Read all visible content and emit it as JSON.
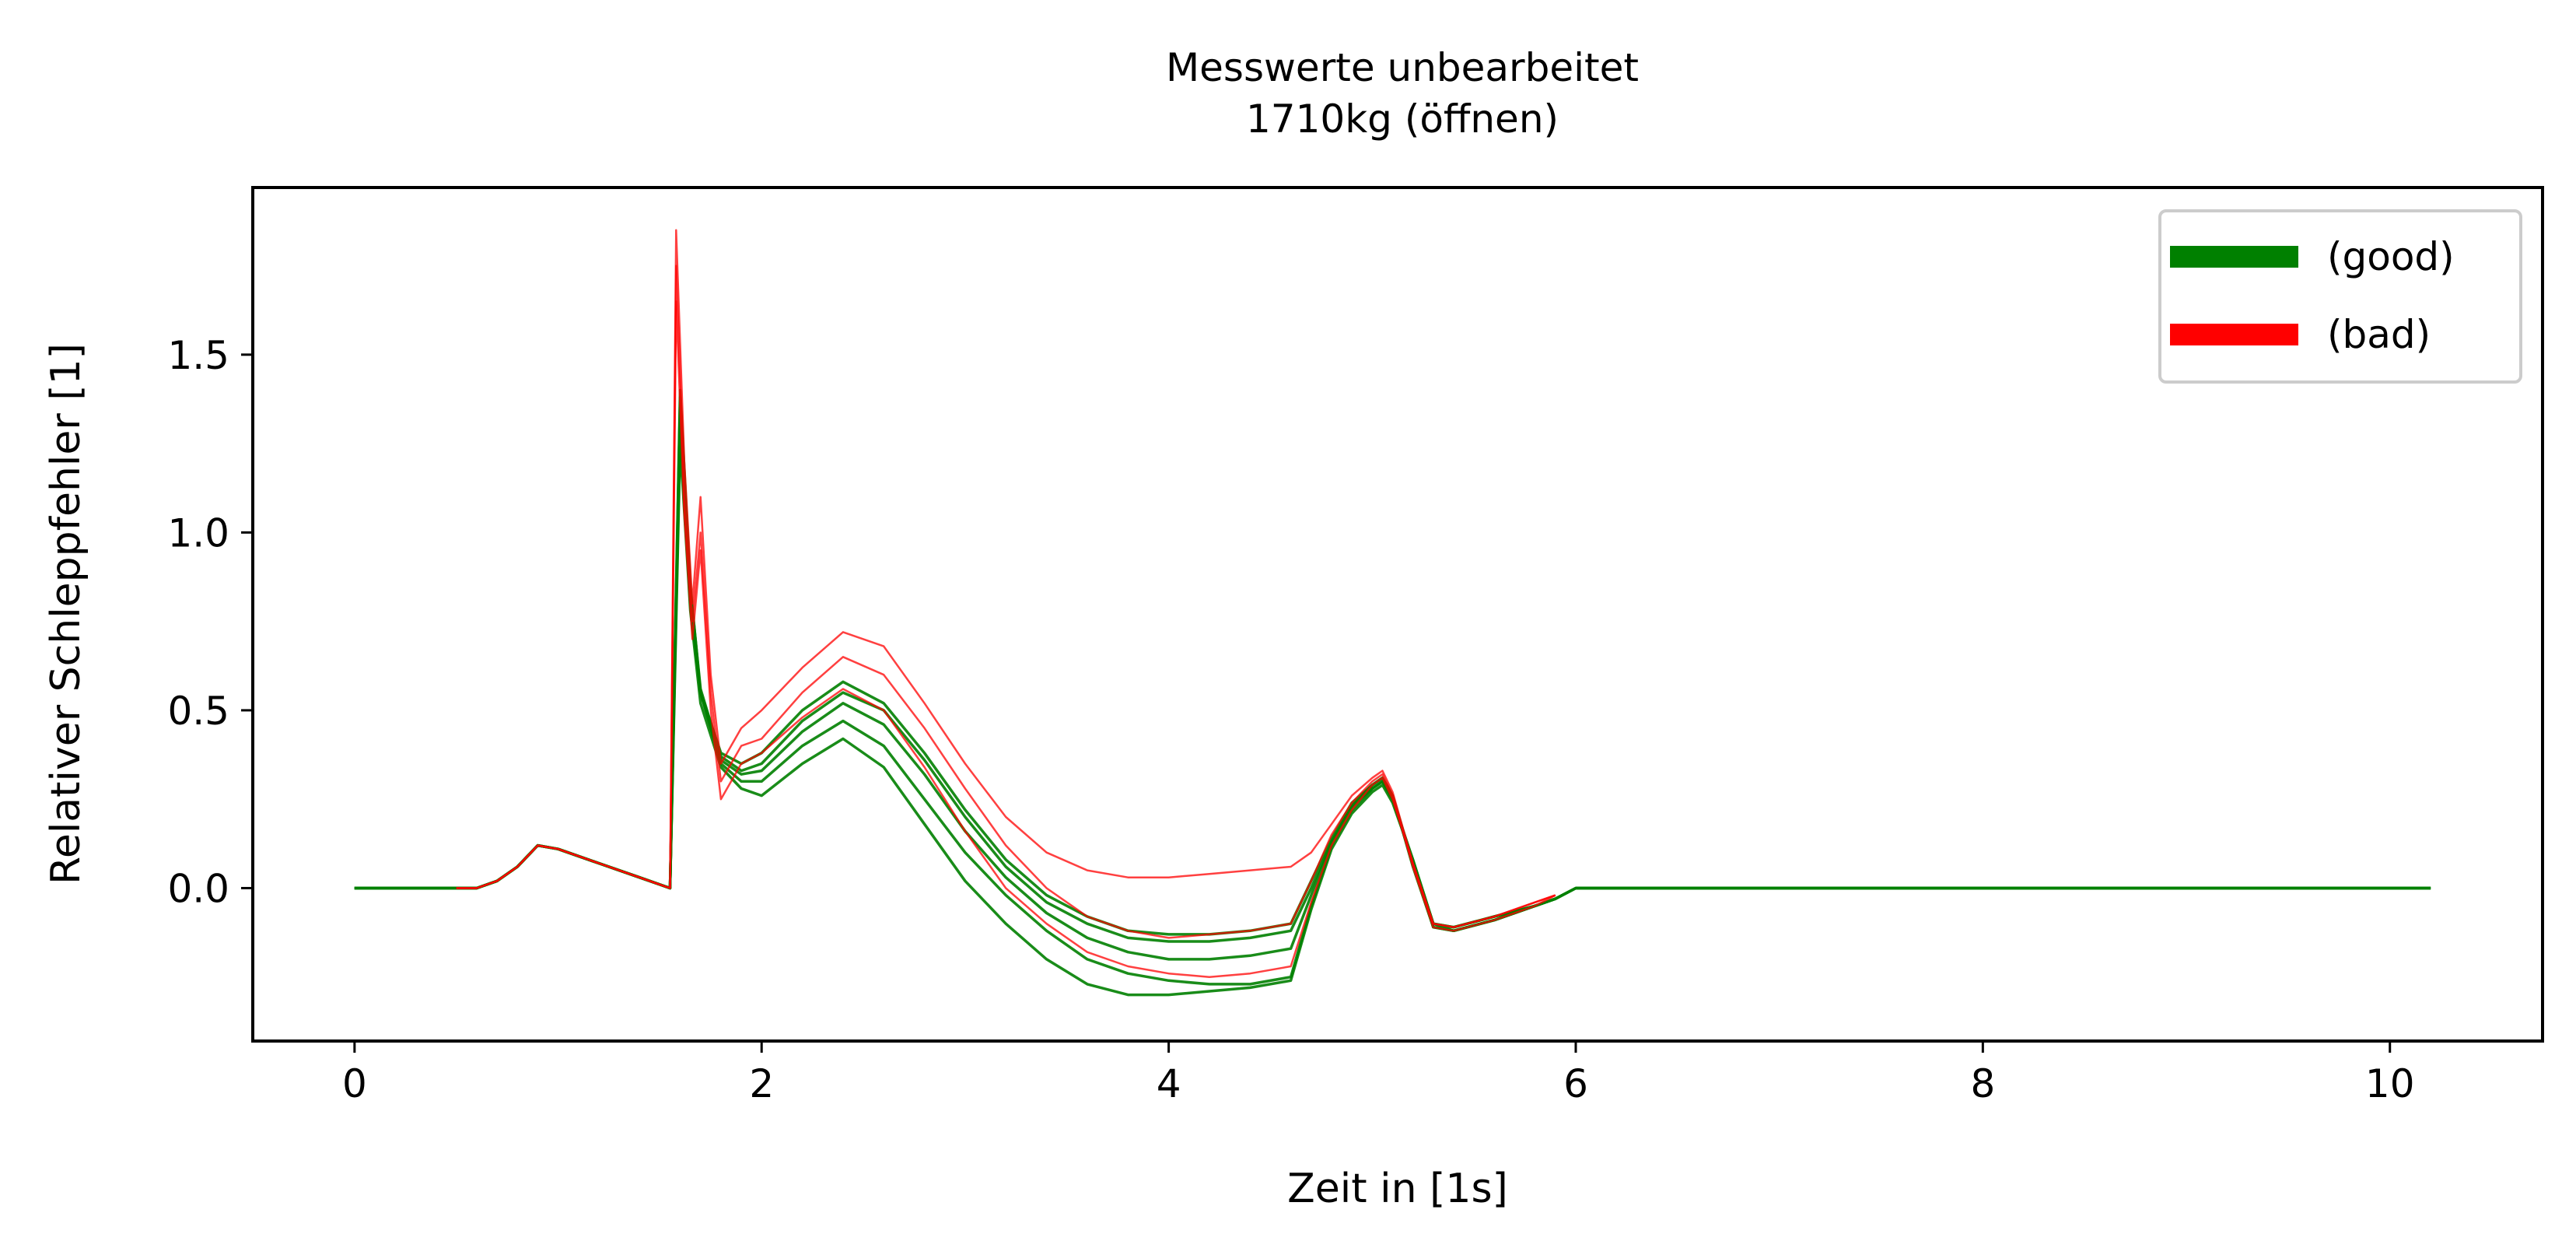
{
  "chart_data": {
    "type": "line",
    "title": "Messwerte unbearbeitet",
    "subtitle": "1710kg (öffnen)",
    "xlabel": "Zeit in [1s]",
    "ylabel": "Relativer Schleppfehler [1]",
    "xlim": [
      -0.5,
      10.75
    ],
    "ylim": [
      -0.43,
      1.97
    ],
    "xticks": [
      0,
      2,
      4,
      6,
      8,
      10
    ],
    "xtick_labels": [
      "0",
      "2",
      "4",
      "6",
      "8",
      "10"
    ],
    "yticks": [
      0.0,
      0.5,
      1.0,
      1.5
    ],
    "ytick_labels": [
      "0.0",
      "0.5",
      "1.0",
      "1.5"
    ],
    "grid": false,
    "legend_position": "top-right",
    "colors": {
      "good": "#008000",
      "bad": "#ff0000"
    },
    "legend": [
      {
        "label": "(good)",
        "color": "#008000"
      },
      {
        "label": "(bad)",
        "color": "#ff0000"
      }
    ],
    "series": [
      {
        "name": "(good)",
        "color": "#008000",
        "group": "good",
        "x": [
          0,
          0.5,
          0.6,
          0.7,
          0.8,
          0.9,
          1.0,
          1.2,
          1.4,
          1.5,
          1.55,
          1.6,
          1.65,
          1.7,
          1.8,
          1.9,
          2.0,
          2.2,
          2.4,
          2.6,
          2.8,
          3.0,
          3.2,
          3.4,
          3.6,
          3.8,
          4.0,
          4.2,
          4.4,
          4.6,
          4.7,
          4.8,
          4.9,
          5.0,
          5.05,
          5.1,
          5.2,
          5.3,
          5.4,
          5.6,
          5.8,
          5.9,
          6.0,
          10.2
        ],
        "y": [
          0,
          0,
          0,
          0.02,
          0.06,
          0.12,
          0.11,
          0.07,
          0.03,
          0.01,
          0.0,
          1.4,
          0.85,
          0.55,
          0.35,
          0.3,
          0.3,
          0.4,
          0.47,
          0.4,
          0.25,
          0.1,
          -0.02,
          -0.12,
          -0.2,
          -0.24,
          -0.26,
          -0.27,
          -0.27,
          -0.25,
          -0.05,
          0.12,
          0.22,
          0.28,
          0.3,
          0.25,
          0.08,
          -0.1,
          -0.11,
          -0.08,
          -0.05,
          -0.03,
          0,
          0
        ]
      },
      {
        "name": "(good)",
        "color": "#008000",
        "group": "good",
        "x": [
          0,
          0.5,
          0.6,
          0.7,
          0.8,
          0.9,
          1.0,
          1.2,
          1.4,
          1.5,
          1.55,
          1.6,
          1.65,
          1.7,
          1.8,
          1.9,
          2.0,
          2.2,
          2.4,
          2.6,
          2.8,
          3.0,
          3.2,
          3.4,
          3.6,
          3.8,
          4.0,
          4.2,
          4.4,
          4.6,
          4.7,
          4.8,
          4.9,
          5.0,
          5.05,
          5.1,
          5.2,
          5.3,
          5.4,
          5.6,
          5.8,
          5.9,
          6.0,
          10.2
        ],
        "y": [
          0,
          0,
          0,
          0.02,
          0.06,
          0.12,
          0.11,
          0.07,
          0.03,
          0.01,
          0.0,
          1.3,
          0.8,
          0.55,
          0.38,
          0.35,
          0.38,
          0.5,
          0.58,
          0.52,
          0.38,
          0.22,
          0.08,
          -0.02,
          -0.08,
          -0.12,
          -0.13,
          -0.13,
          -0.12,
          -0.1,
          0.02,
          0.14,
          0.24,
          0.29,
          0.31,
          0.26,
          0.06,
          -0.11,
          -0.12,
          -0.09,
          -0.05,
          -0.03,
          0,
          0
        ]
      },
      {
        "name": "(good)",
        "color": "#008000",
        "group": "good",
        "x": [
          0,
          0.5,
          0.6,
          0.7,
          0.8,
          0.9,
          1.0,
          1.2,
          1.4,
          1.5,
          1.55,
          1.6,
          1.65,
          1.7,
          1.8,
          1.9,
          2.0,
          2.2,
          2.4,
          2.6,
          2.8,
          3.0,
          3.2,
          3.4,
          3.6,
          3.8,
          4.0,
          4.2,
          4.4,
          4.6,
          4.7,
          4.8,
          4.9,
          5.0,
          5.05,
          5.1,
          5.2,
          5.3,
          5.4,
          5.6,
          5.8,
          5.9,
          6.0,
          10.2
        ],
        "y": [
          0,
          0,
          0,
          0.02,
          0.06,
          0.12,
          0.11,
          0.07,
          0.03,
          0.01,
          0.0,
          1.35,
          0.82,
          0.55,
          0.36,
          0.32,
          0.33,
          0.44,
          0.52,
          0.46,
          0.32,
          0.16,
          0.03,
          -0.07,
          -0.14,
          -0.18,
          -0.2,
          -0.2,
          -0.19,
          -0.17,
          -0.02,
          0.13,
          0.23,
          0.28,
          0.3,
          0.25,
          0.07,
          -0.1,
          -0.12,
          -0.09,
          -0.05,
          -0.03,
          0,
          0
        ]
      },
      {
        "name": "(good)",
        "color": "#008000",
        "group": "good",
        "x": [
          0,
          0.5,
          0.6,
          0.7,
          0.8,
          0.9,
          1.0,
          1.2,
          1.4,
          1.5,
          1.55,
          1.6,
          1.65,
          1.7,
          1.8,
          1.9,
          2.0,
          2.2,
          2.4,
          2.6,
          2.8,
          3.0,
          3.2,
          3.4,
          3.6,
          3.8,
          4.0,
          4.2,
          4.4,
          4.6,
          4.7,
          4.8,
          4.9,
          5.0,
          5.05,
          5.1,
          5.2,
          5.3,
          5.4,
          5.6,
          5.8,
          5.9,
          6.0,
          10.2
        ],
        "y": [
          0,
          0,
          0,
          0.02,
          0.06,
          0.12,
          0.11,
          0.07,
          0.03,
          0.01,
          0.0,
          1.25,
          0.78,
          0.52,
          0.34,
          0.28,
          0.26,
          0.35,
          0.42,
          0.34,
          0.18,
          0.02,
          -0.1,
          -0.2,
          -0.27,
          -0.3,
          -0.3,
          -0.29,
          -0.28,
          -0.26,
          -0.06,
          0.11,
          0.21,
          0.27,
          0.29,
          0.24,
          0.08,
          -0.1,
          -0.11,
          -0.08,
          -0.05,
          -0.03,
          0,
          0
        ]
      },
      {
        "name": "(good)",
        "color": "#008000",
        "group": "good",
        "x": [
          0,
          0.5,
          0.6,
          0.7,
          0.8,
          0.9,
          1.0,
          1.2,
          1.4,
          1.5,
          1.55,
          1.6,
          1.65,
          1.7,
          1.8,
          1.9,
          2.0,
          2.2,
          2.4,
          2.6,
          2.8,
          3.0,
          3.2,
          3.4,
          3.6,
          3.8,
          4.0,
          4.2,
          4.4,
          4.6,
          4.7,
          4.8,
          4.9,
          5.0,
          5.05,
          5.1,
          5.2,
          5.3,
          5.4,
          5.6,
          5.8,
          5.9,
          6.0,
          10.2
        ],
        "y": [
          0,
          0,
          0,
          0.02,
          0.06,
          0.12,
          0.11,
          0.07,
          0.03,
          0.01,
          0.0,
          1.38,
          0.84,
          0.56,
          0.37,
          0.33,
          0.35,
          0.47,
          0.55,
          0.5,
          0.36,
          0.2,
          0.06,
          -0.04,
          -0.1,
          -0.14,
          -0.15,
          -0.15,
          -0.14,
          -0.12,
          0.0,
          0.13,
          0.23,
          0.29,
          0.31,
          0.26,
          0.07,
          -0.11,
          -0.12,
          -0.09,
          -0.05,
          -0.03,
          0,
          0
        ]
      },
      {
        "name": "(bad)",
        "color": "#ff0000",
        "group": "bad",
        "x": [
          0.5,
          0.6,
          0.7,
          0.8,
          0.9,
          1.0,
          1.2,
          1.4,
          1.5,
          1.55,
          1.58,
          1.62,
          1.66,
          1.7,
          1.75,
          1.8,
          1.9,
          2.0,
          2.2,
          2.4,
          2.6,
          2.8,
          3.0,
          3.2,
          3.4,
          3.6,
          3.8,
          4.0,
          4.2,
          4.4,
          4.6,
          4.7,
          4.8,
          4.9,
          5.0,
          5.05,
          5.1,
          5.2,
          5.3,
          5.4,
          5.6,
          5.8,
          5.9
        ],
        "y": [
          0,
          0,
          0.02,
          0.06,
          0.12,
          0.11,
          0.07,
          0.03,
          0.01,
          0.0,
          1.85,
          1.2,
          0.8,
          1.1,
          0.6,
          0.35,
          0.45,
          0.5,
          0.62,
          0.72,
          0.68,
          0.52,
          0.35,
          0.2,
          0.1,
          0.05,
          0.03,
          0.03,
          0.04,
          0.05,
          0.06,
          0.1,
          0.18,
          0.26,
          0.31,
          0.33,
          0.27,
          0.07,
          -0.1,
          -0.11,
          -0.08,
          -0.04,
          -0.02
        ]
      },
      {
        "name": "(bad)",
        "color": "#ff0000",
        "group": "bad",
        "x": [
          0.5,
          0.6,
          0.7,
          0.8,
          0.9,
          1.0,
          1.2,
          1.4,
          1.5,
          1.55,
          1.58,
          1.62,
          1.66,
          1.7,
          1.75,
          1.8,
          1.9,
          2.0,
          2.2,
          2.4,
          2.6,
          2.8,
          3.0,
          3.2,
          3.4,
          3.6,
          3.8,
          4.0,
          4.2,
          4.4,
          4.6,
          4.7,
          4.8,
          4.9,
          5.0,
          5.05,
          5.1,
          5.2,
          5.3,
          5.4,
          5.6,
          5.8,
          5.9
        ],
        "y": [
          0,
          0,
          0.02,
          0.06,
          0.12,
          0.11,
          0.07,
          0.03,
          0.01,
          0.0,
          1.75,
          1.1,
          0.75,
          1.0,
          0.55,
          0.3,
          0.4,
          0.42,
          0.55,
          0.65,
          0.6,
          0.45,
          0.28,
          0.12,
          0.0,
          -0.08,
          -0.12,
          -0.14,
          -0.13,
          -0.12,
          -0.1,
          0.02,
          0.15,
          0.24,
          0.3,
          0.32,
          0.26,
          0.06,
          -0.11,
          -0.12,
          -0.09,
          -0.05,
          -0.02
        ]
      },
      {
        "name": "(bad)",
        "color": "#ff0000",
        "group": "bad",
        "x": [
          0.5,
          0.6,
          0.7,
          0.8,
          0.9,
          1.0,
          1.2,
          1.4,
          1.5,
          1.55,
          1.58,
          1.62,
          1.66,
          1.7,
          1.75,
          1.8,
          1.9,
          2.0,
          2.2,
          2.4,
          2.6,
          2.8,
          3.0,
          3.2,
          3.4,
          3.6,
          3.8,
          4.0,
          4.2,
          4.4,
          4.6,
          4.7,
          4.8,
          4.9,
          5.0,
          5.05,
          5.1,
          5.2,
          5.3,
          5.4,
          5.6,
          5.8,
          5.9
        ],
        "y": [
          0,
          0,
          0.02,
          0.06,
          0.12,
          0.11,
          0.07,
          0.03,
          0.01,
          0.0,
          1.65,
          1.05,
          0.7,
          0.95,
          0.5,
          0.25,
          0.35,
          0.38,
          0.48,
          0.56,
          0.5,
          0.34,
          0.16,
          0.0,
          -0.1,
          -0.18,
          -0.22,
          -0.24,
          -0.25,
          -0.24,
          -0.22,
          -0.04,
          0.12,
          0.22,
          0.29,
          0.31,
          0.25,
          0.07,
          -0.1,
          -0.11,
          -0.08,
          -0.04,
          -0.02
        ]
      }
    ]
  }
}
